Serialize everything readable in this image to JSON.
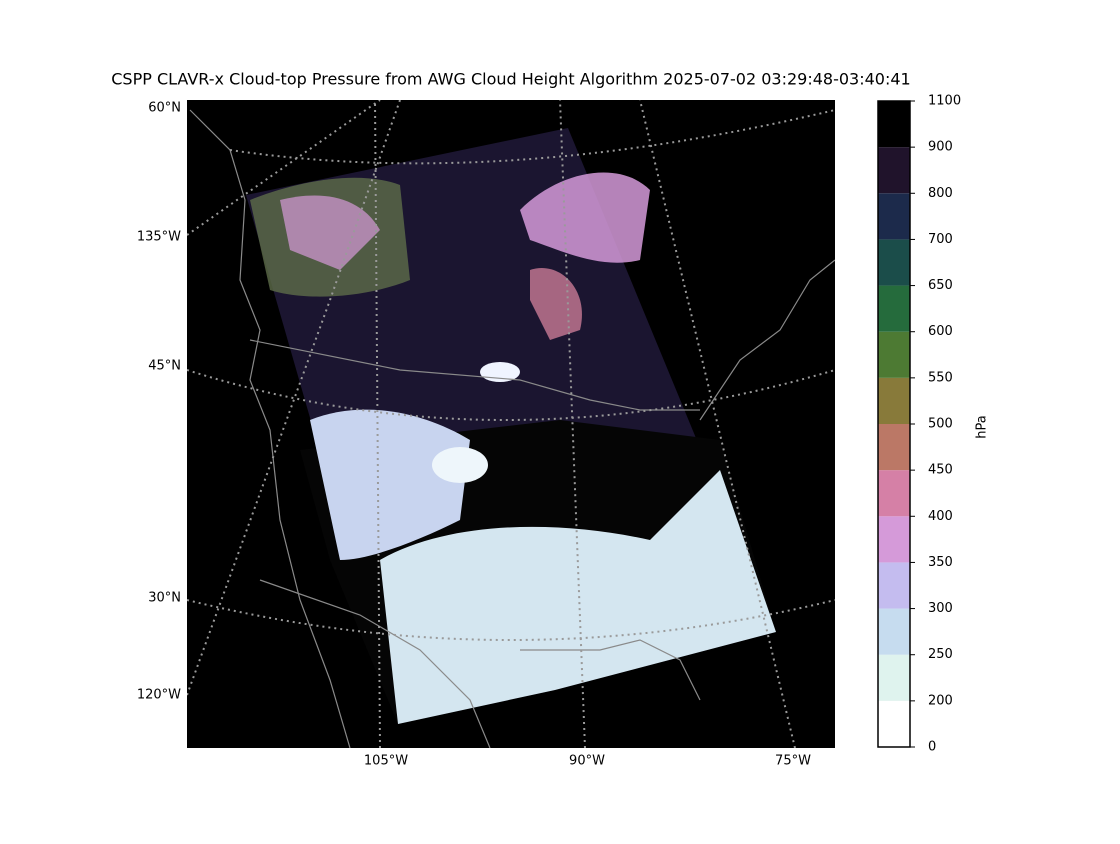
{
  "title": "CSPP CLAVR-x Cloud-top Pressure from AWG Cloud Height Algorithm 2025-07-02 03:29:48-03:40:41",
  "map": {
    "left_labels": [
      "60°N",
      "135°W",
      "45°N",
      "30°N",
      "120°W"
    ],
    "bottom_labels": [
      "105°W",
      "90°W",
      "75°W"
    ]
  },
  "colorbar": {
    "label": "hPa",
    "boundaries": [
      0,
      200,
      250,
      300,
      350,
      400,
      450,
      500,
      550,
      600,
      650,
      700,
      800,
      900,
      1100
    ],
    "colors": [
      "#ffffff",
      "#dff3ee",
      "#c6dcef",
      "#c4bcef",
      "#d59ad9",
      "#d580a6",
      "#bb7866",
      "#887a3a",
      "#4d7a33",
      "#256b3c",
      "#1b4d4a",
      "#1c2a4b",
      "#20132b",
      "#000000"
    ]
  }
}
